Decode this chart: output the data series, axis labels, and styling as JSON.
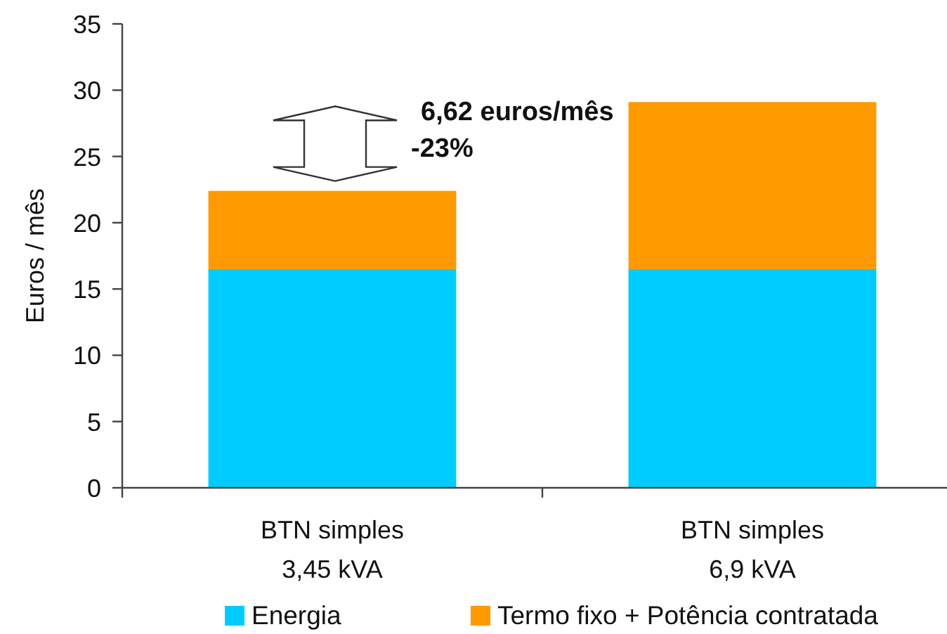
{
  "chart_data": {
    "type": "bar",
    "stacked": true,
    "ylabel": "Euros / mês",
    "categories": [
      "BTN simples\n3,45 kVA",
      "BTN simples\n6,9 kVA"
    ],
    "series": [
      {
        "name": "Energia",
        "color": "#00ccff",
        "values": [
          16.5,
          16.5
        ]
      },
      {
        "name": "Termo fixo + Potência contratada",
        "color": "#ff9900",
        "values": [
          5.9,
          12.6
        ]
      }
    ],
    "ylim": [
      0,
      35
    ],
    "yticks": [
      0,
      5,
      10,
      15,
      20,
      25,
      30,
      35
    ],
    "legend": "bottom",
    "annotations": [
      "6,62 euros/mês",
      "-23%"
    ]
  }
}
